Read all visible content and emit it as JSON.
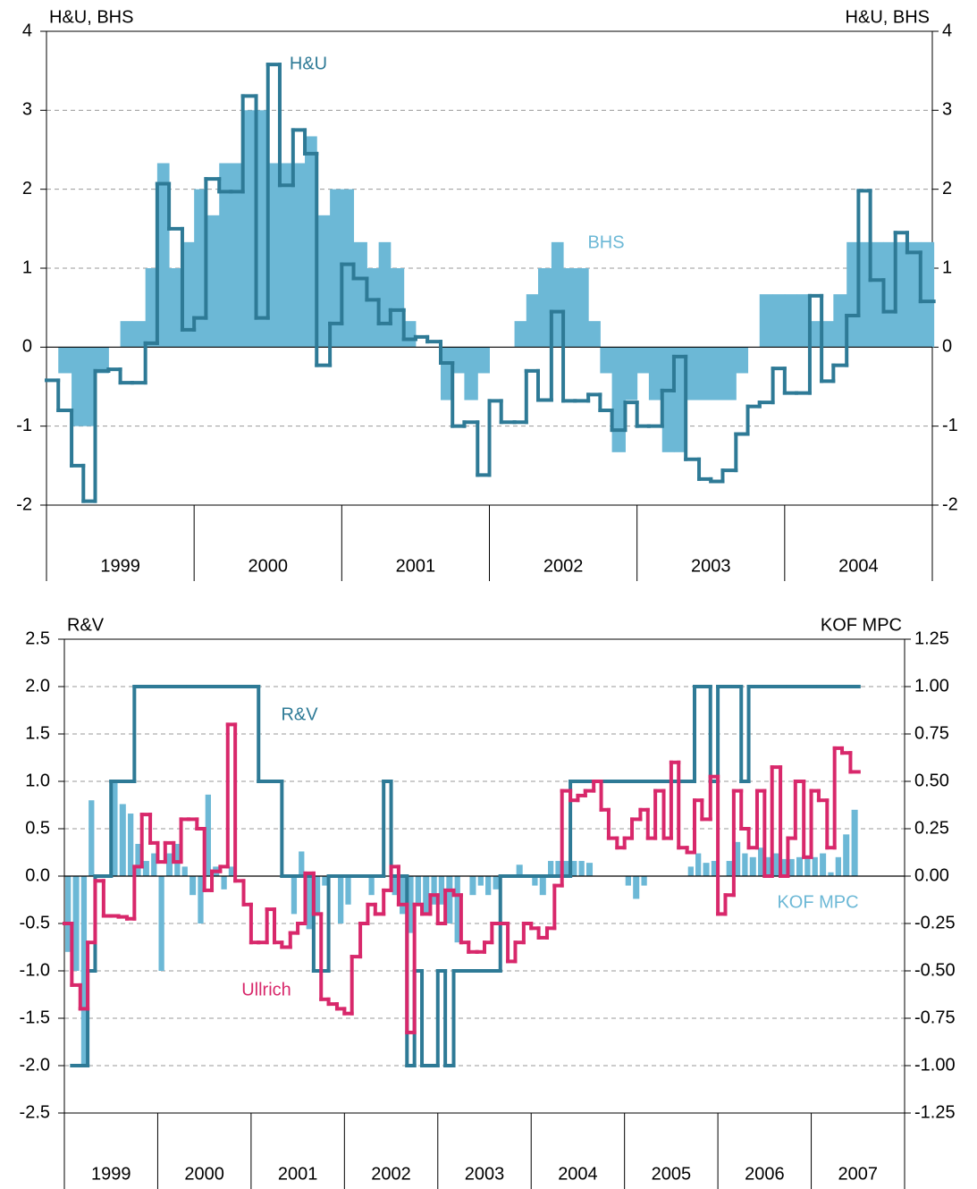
{
  "chart_data": [
    {
      "type": "line",
      "ylabel": "H&U, BHS",
      "y2label": "H&U, BHS",
      "categories": [
        "1999",
        "2000",
        "2001",
        "2002",
        "2003",
        "2004"
      ],
      "xlim": [
        1999,
        2005
      ],
      "xticks": [
        1999,
        2000,
        2001,
        2002,
        2003,
        2004,
        2005
      ],
      "ylim": [
        -2,
        4
      ],
      "yticks": [
        -2,
        -1,
        0,
        1,
        2,
        3,
        4
      ],
      "grid": true,
      "x": [
        1999.0,
        1999.08,
        1999.17,
        1999.25,
        1999.33,
        1999.42,
        1999.5,
        1999.58,
        1999.67,
        1999.75,
        1999.83,
        1999.92,
        2000.0,
        2000.08,
        2000.17,
        2000.25,
        2000.33,
        2000.42,
        2000.5,
        2000.58,
        2000.67,
        2000.75,
        2000.83,
        2000.92,
        2001.0,
        2001.08,
        2001.17,
        2001.25,
        2001.33,
        2001.42,
        2001.5,
        2001.58,
        2001.67,
        2001.75,
        2001.83,
        2001.92,
        2002.0,
        2002.08,
        2002.17,
        2002.25,
        2002.33,
        2002.42,
        2002.5,
        2002.58,
        2002.67,
        2002.75,
        2002.83,
        2002.92,
        2003.0,
        2003.08,
        2003.17,
        2003.25,
        2003.33,
        2003.42,
        2003.5,
        2003.58,
        2003.67,
        2003.75,
        2003.83,
        2003.92,
        2004.0,
        2004.08,
        2004.17,
        2004.25,
        2004.33,
        2004.42,
        2004.5,
        2004.58,
        2004.67,
        2004.75,
        2004.83,
        2004.92
      ],
      "series": [
        {
          "name": "BHS",
          "type": "bar",
          "color": "#6cb8d6",
          "values": [
            0,
            -0.33,
            -1.0,
            -1.0,
            -0.33,
            0,
            0.33,
            0.33,
            1.0,
            2.33,
            1.0,
            1.33,
            2.0,
            1.67,
            2.33,
            2.33,
            3.0,
            3.0,
            2.33,
            2.33,
            2.33,
            2.67,
            1.67,
            2.0,
            2.0,
            1.33,
            1.0,
            1.33,
            1.0,
            0.33,
            0,
            0,
            -0.67,
            -0.33,
            -0.67,
            -0.33,
            0,
            0,
            0.33,
            0.67,
            1.0,
            1.33,
            1.0,
            1.0,
            0.33,
            -0.33,
            -1.33,
            -0.67,
            -0.33,
            -0.67,
            -1.33,
            -1.33,
            -0.67,
            -0.67,
            -0.67,
            -0.67,
            -0.33,
            0,
            0.67,
            0.67,
            0.67,
            0.67,
            0.33,
            0.33,
            0.67,
            1.33,
            1.33,
            1.33,
            1.33,
            1.33,
            1.33,
            1.33
          ]
        },
        {
          "name": "H&U",
          "type": "step",
          "color": "#2e7a96",
          "values": [
            -0.42,
            -0.8,
            -1.5,
            -1.95,
            -0.3,
            -0.28,
            -0.45,
            -0.45,
            0.05,
            2.07,
            1.5,
            0.22,
            0.37,
            2.13,
            1.97,
            1.97,
            3.18,
            0.37,
            3.58,
            2.05,
            2.75,
            2.45,
            -0.23,
            0.3,
            1.05,
            0.87,
            0.6,
            0.3,
            0.47,
            0.1,
            0.13,
            0.07,
            -0.2,
            -1.0,
            -0.95,
            -1.62,
            -0.68,
            -0.95,
            -0.95,
            -0.3,
            -0.67,
            0.45,
            -0.68,
            -0.68,
            -0.6,
            -0.8,
            -1.05,
            -0.7,
            -1.0,
            -1.0,
            -0.55,
            -0.12,
            -1.42,
            -1.67,
            -1.7,
            -1.56,
            -1.1,
            -0.75,
            -0.7,
            -0.27,
            -0.58,
            -0.58,
            0.65,
            -0.43,
            -0.23,
            0.4,
            1.98,
            0.85,
            0.45,
            1.45,
            1.2,
            0.58
          ]
        }
      ]
    },
    {
      "type": "line",
      "ylabel": "R&V",
      "y2label": "KOF MPC",
      "categories": [
        "1999",
        "2000",
        "2001",
        "2002",
        "2003",
        "2004",
        "2005",
        "2006",
        "2007"
      ],
      "xlim": [
        1999,
        2008
      ],
      "xticks": [
        1999,
        2000,
        2001,
        2002,
        2003,
        2004,
        2005,
        2006,
        2007,
        2008
      ],
      "ylim": [
        -2.5,
        2.5
      ],
      "yticks": [
        -2.5,
        {
          "value": -2,
          "label": "-2.0"
        },
        -1.5,
        {
          "value": -1,
          "label": "-1.0"
        },
        -0.5,
        {
          "value": 0,
          "label": "0.0"
        },
        0.5,
        {
          "value": 1,
          "label": "1.0"
        },
        1.5,
        {
          "value": 2,
          "label": "2.0"
        },
        2.5
      ],
      "y2lim": [
        -1.25,
        1.25
      ],
      "y2ticks": [
        -1.25,
        {
          "value": -1,
          "label": "-1.00"
        },
        -0.75,
        {
          "value": -0.5,
          "label": "-0.50"
        },
        -0.25,
        {
          "value": 0,
          "label": "0.00"
        },
        0.25,
        {
          "value": 0.5,
          "label": "0.50"
        },
        0.75,
        {
          "value": 1,
          "label": "1.00"
        },
        1.25
      ],
      "grid": true,
      "x": [
        1999.0,
        1999.08,
        1999.17,
        1999.25,
        1999.33,
        1999.42,
        1999.5,
        1999.58,
        1999.67,
        1999.75,
        1999.83,
        1999.92,
        2000.0,
        2000.08,
        2000.17,
        2000.25,
        2000.33,
        2000.42,
        2000.5,
        2000.58,
        2000.67,
        2000.75,
        2000.83,
        2000.92,
        2001.0,
        2001.08,
        2001.17,
        2001.25,
        2001.33,
        2001.42,
        2001.5,
        2001.58,
        2001.67,
        2001.75,
        2001.83,
        2001.92,
        2002.0,
        2002.08,
        2002.17,
        2002.25,
        2002.33,
        2002.42,
        2002.5,
        2002.58,
        2002.67,
        2002.75,
        2002.83,
        2002.92,
        2003.0,
        2003.08,
        2003.17,
        2003.25,
        2003.33,
        2003.42,
        2003.5,
        2003.58,
        2003.67,
        2003.75,
        2003.83,
        2003.92,
        2004.0,
        2004.08,
        2004.17,
        2004.25,
        2004.33,
        2004.42,
        2004.5,
        2004.58,
        2004.67,
        2004.75,
        2004.83,
        2004.92,
        2005.0,
        2005.08,
        2005.17,
        2005.25,
        2005.33,
        2005.42,
        2005.5,
        2005.58,
        2005.67,
        2005.75,
        2005.83,
        2005.92,
        2006.0,
        2006.08,
        2006.17,
        2006.25,
        2006.33,
        2006.42,
        2006.5,
        2006.58,
        2006.67,
        2006.75,
        2006.83,
        2006.92,
        2007.0,
        2007.08,
        2007.17,
        2007.25,
        2007.33,
        2007.42
      ],
      "series": [
        {
          "name": "KOF MPC",
          "type": "bar",
          "axis": "y2",
          "color": "#6cb8d6",
          "values": [
            -0.4,
            -0.5,
            -1.0,
            0.4,
            0,
            0,
            0.5,
            0.38,
            0.33,
            0.17,
            0.08,
            0.12,
            -0.5,
            0.12,
            0.17,
            0.05,
            -0.1,
            -0.25,
            0.43,
            0.05,
            -0.07,
            0.05,
            0,
            0,
            0,
            0,
            0,
            0,
            0,
            -0.2,
            0.13,
            -0.28,
            -0.2,
            -0.05,
            0,
            -0.25,
            -0.15,
            0,
            0,
            -0.1,
            0,
            0,
            -0.1,
            -0.2,
            -0.3,
            -0.15,
            -0.2,
            -0.15,
            -0.15,
            -0.25,
            -0.35,
            0,
            -0.1,
            -0.05,
            -0.1,
            -0.07,
            0,
            0,
            0.06,
            0,
            -0.05,
            -0.1,
            0.08,
            0.08,
            0.08,
            0.08,
            0.08,
            0.07,
            0,
            0,
            0,
            0,
            -0.05,
            -0.12,
            -0.05,
            0,
            0,
            0,
            0,
            0,
            0.05,
            0.12,
            0.07,
            0.08,
            0,
            0.08,
            0.18,
            0.12,
            0.1,
            0.15,
            0.1,
            0.12,
            0.09,
            0.09,
            0.1,
            0.1,
            0.1,
            0.12,
            0.02,
            0.1,
            0.22,
            0.35
          ]
        },
        {
          "name": "R&V",
          "type": "step",
          "color": "#2e7a96",
          "values": [
            null,
            -2,
            -2,
            -1,
            0,
            0,
            1,
            1,
            1,
            2,
            2,
            2,
            2,
            2,
            2,
            2,
            2,
            2,
            2,
            2,
            2,
            2,
            2,
            2,
            2,
            1,
            1,
            1,
            0,
            0,
            0,
            0,
            -1,
            -1,
            0,
            0,
            0,
            0,
            0,
            0,
            0,
            1,
            0,
            0,
            -2,
            -1,
            -2,
            -2,
            -1,
            -2,
            -1,
            -1,
            -1,
            -1,
            -1,
            -1,
            0,
            0,
            0,
            0,
            0,
            0,
            0,
            0,
            0,
            1,
            1,
            1,
            1,
            1,
            1,
            1,
            1,
            1,
            1,
            1,
            1,
            1,
            1,
            1,
            1,
            2,
            2,
            1,
            2,
            2,
            2,
            1,
            2,
            2,
            2,
            2,
            2,
            2,
            2,
            2,
            2,
            2,
            2,
            2,
            2,
            2
          ]
        },
        {
          "name": "Ullrich",
          "type": "step",
          "color": "#d8286b",
          "values": [
            -0.5,
            -1.15,
            -1.4,
            -0.7,
            -0.05,
            -0.42,
            -0.42,
            -0.43,
            -0.45,
            0.1,
            0.65,
            0.35,
            0.15,
            0.35,
            0.15,
            0.6,
            0.6,
            0.5,
            -0.15,
            0.05,
            0.1,
            1.6,
            -0.05,
            -0.3,
            -0.7,
            -0.7,
            -0.35,
            -0.7,
            -0.75,
            -0.6,
            -0.5,
            0.03,
            -0.4,
            -1.3,
            -1.35,
            -1.4,
            -1.45,
            -0.85,
            -0.5,
            -0.3,
            -0.4,
            -0.15,
            0.1,
            -0.3,
            -1.65,
            -0.3,
            -0.4,
            -0.2,
            -0.5,
            -0.15,
            -0.2,
            -0.7,
            -0.8,
            -0.8,
            -0.7,
            -0.5,
            -0.5,
            -0.9,
            -0.7,
            -0.5,
            -0.55,
            -0.65,
            -0.55,
            -0.1,
            0.9,
            0.8,
            0.85,
            0.9,
            1.0,
            0.7,
            0.4,
            0.3,
            0.4,
            0.6,
            0.7,
            0.4,
            0.9,
            0.4,
            1.2,
            0.3,
            0.25,
            0.8,
            0.6,
            1.05,
            -0.4,
            -0.2,
            0.9,
            0.5,
            0.3,
            0.9,
            0.0,
            1.15,
            0.0,
            0.4,
            1.0,
            0.2,
            0.9,
            0.8,
            0.3,
            1.35,
            1.3,
            1.1
          ]
        }
      ]
    }
  ]
}
